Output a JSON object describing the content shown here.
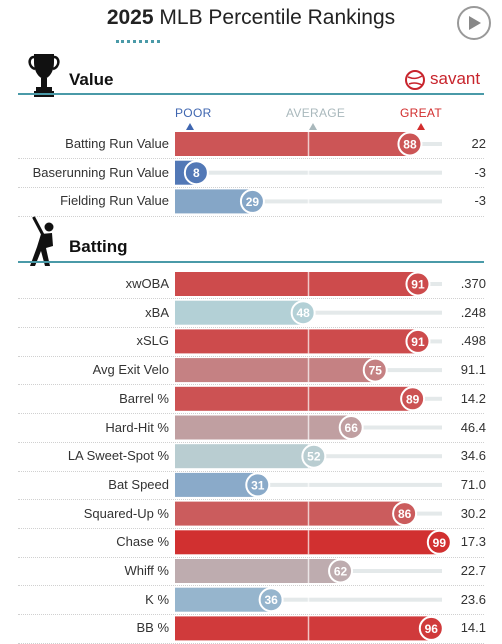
{
  "header": {
    "year": "2025",
    "title": "MLB Percentile Rankings"
  },
  "sections": {
    "value": "Value",
    "batting": "Batting",
    "brand": "savant"
  },
  "axis": {
    "poor": "POOR",
    "average": "AVERAGE",
    "great": "GREAT"
  },
  "colors": {
    "poor": "#3f66b0",
    "great": "#d22d2d",
    "average": "#b8d4d8",
    "accent_line": "#4a9aa8",
    "track": "#e4e9ea"
  },
  "chart_data": {
    "type": "bar",
    "x_range": [
      0,
      100
    ],
    "groups": [
      {
        "name": "Value",
        "metrics": [
          {
            "label": "Batting Run Value",
            "percentile": 88,
            "value": "22"
          },
          {
            "label": "Baserunning Run Value",
            "percentile": 8,
            "value": "-3"
          },
          {
            "label": "Fielding Run Value",
            "percentile": 29,
            "value": "-3"
          }
        ]
      },
      {
        "name": "Batting",
        "metrics": [
          {
            "label": "xwOBA",
            "percentile": 91,
            "value": ".370"
          },
          {
            "label": "xBA",
            "percentile": 48,
            "value": ".248"
          },
          {
            "label": "xSLG",
            "percentile": 91,
            "value": ".498"
          },
          {
            "label": "Avg Exit Velo",
            "percentile": 75,
            "value": "91.1"
          },
          {
            "label": "Barrel %",
            "percentile": 89,
            "value": "14.2"
          },
          {
            "label": "Hard-Hit %",
            "percentile": 66,
            "value": "46.4"
          },
          {
            "label": "LA Sweet-Spot %",
            "percentile": 52,
            "value": "34.6"
          },
          {
            "label": "Bat Speed",
            "percentile": 31,
            "value": "71.0"
          },
          {
            "label": "Squared-Up %",
            "percentile": 86,
            "value": "30.2"
          },
          {
            "label": "Chase %",
            "percentile": 99,
            "value": "17.3"
          },
          {
            "label": "Whiff %",
            "percentile": 62,
            "value": "22.7"
          },
          {
            "label": "K %",
            "percentile": 36,
            "value": "23.6"
          },
          {
            "label": "BB %",
            "percentile": 96,
            "value": "14.1"
          }
        ]
      }
    ]
  }
}
